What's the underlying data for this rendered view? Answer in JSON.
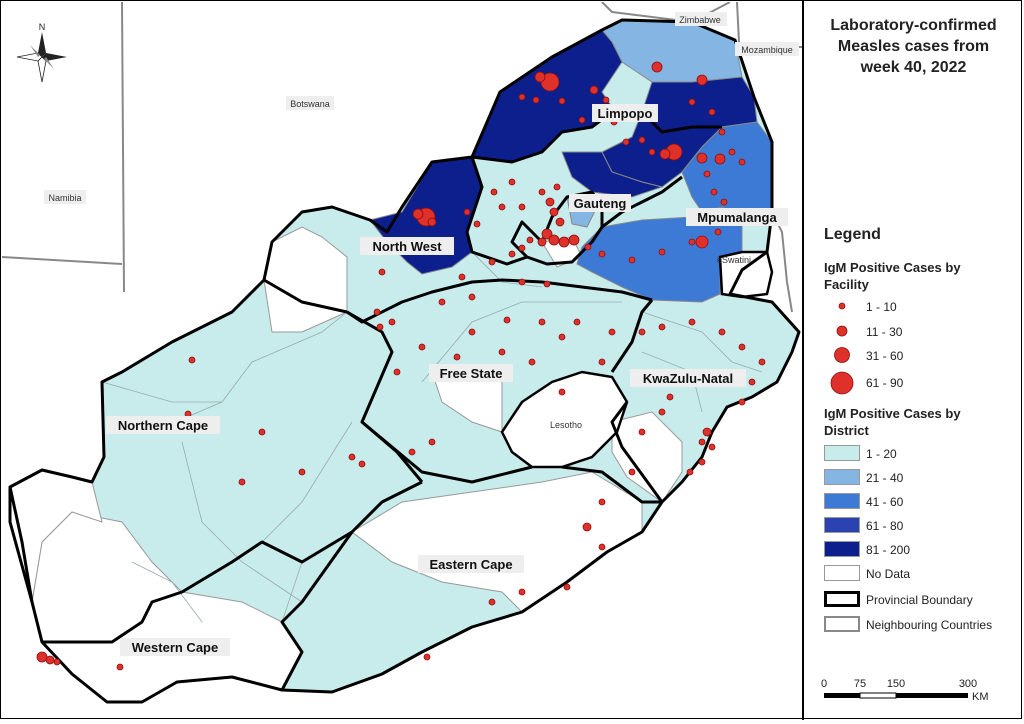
{
  "title": [
    "Laboratory-confirmed",
    "Measles cases from",
    "week 40, 2022"
  ],
  "legend": {
    "heading": "Legend",
    "facility_title": [
      "IgM Positive Cases by",
      "Facility"
    ],
    "facility_items": [
      "1 - 10",
      "11 - 30",
      "31 - 60",
      "61 - 90"
    ],
    "district_title": [
      "IgM Positive Cases by",
      "District"
    ],
    "district_items": [
      {
        "label": "1 - 20",
        "color": "#c8ecec"
      },
      {
        "label": "21 - 40",
        "color": "#85b5e2"
      },
      {
        "label": "41 - 60",
        "color": "#3d7ad6"
      },
      {
        "label": "61 - 80",
        "color": "#2b43b0"
      },
      {
        "label": "81 - 200",
        "color": "#0d1f8c"
      },
      {
        "label": "No Data",
        "color": "#ffffff"
      }
    ],
    "provincial_boundary": "Provincial Boundary",
    "neighbouring_countries": "Neighbouring Countries"
  },
  "scale": {
    "ticks": [
      "0",
      "75",
      "150",
      "300"
    ],
    "unit": "KM"
  },
  "north": "N",
  "provinces": [
    "Limpopo",
    "Gauteng",
    "Mpumalanga",
    "North West",
    "Free State",
    "KwaZulu-Natal",
    "Northern Cape",
    "Eastern Cape",
    "Western Cape"
  ],
  "countries": [
    "Zimbabwe",
    "Mozambique",
    "Botswana",
    "Namibia",
    "eSwatini",
    "Lesotho"
  ],
  "colors": {
    "dot_fill": "#e0302a",
    "dot_stroke": "#8a1010",
    "boundary": "#000000",
    "district_line": "#888888"
  }
}
